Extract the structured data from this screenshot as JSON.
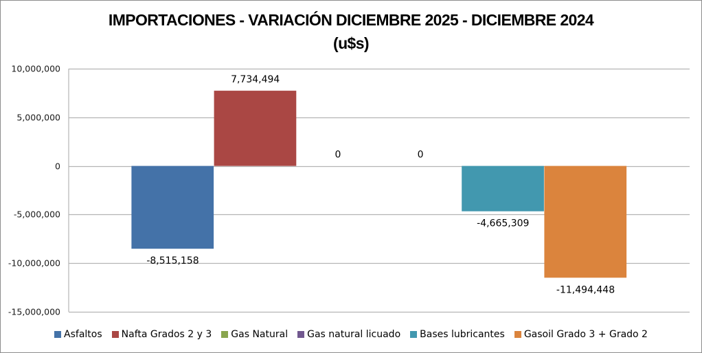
{
  "chart_data": {
    "type": "bar",
    "title": "IMPORTACIONES - VARIACIÓN DICIEMBRE 2025 - DICIEMBRE 2024",
    "subtitle": "(u$s)",
    "xlabel": "",
    "ylabel": "",
    "ylim": [
      -15000000,
      10000000
    ],
    "yticks": [
      10000000,
      5000000,
      0,
      -5000000,
      -10000000,
      -15000000
    ],
    "ytick_labels": [
      "10,000,000",
      "5,000,000",
      "0",
      "-5,000,000",
      "-10,000,000",
      "-15,000,000"
    ],
    "grid": true,
    "legend_position": "bottom",
    "categories": [
      ""
    ],
    "series": [
      {
        "name": "Asfaltos",
        "values": [
          -8515158
        ],
        "label": "-8,515,158",
        "color": "#4472A8"
      },
      {
        "name": "Nafta Grados 2 y 3",
        "values": [
          7734494
        ],
        "label": "7,734,494",
        "color": "#AA4744"
      },
      {
        "name": "Gas Natural",
        "values": [
          0
        ],
        "label": "0",
        "color": "#89A54E"
      },
      {
        "name": "Gas natural licuado",
        "values": [
          0
        ],
        "label": "0",
        "color": "#71588F"
      },
      {
        "name": "Bases lubricantes",
        "values": [
          -4665309
        ],
        "label": "-4,665,309",
        "color": "#4298AF"
      },
      {
        "name": "Gasoil Grado 3 + Grado 2",
        "values": [
          -11494448
        ],
        "label": "-11,494,448",
        "color": "#DB843D"
      }
    ]
  }
}
